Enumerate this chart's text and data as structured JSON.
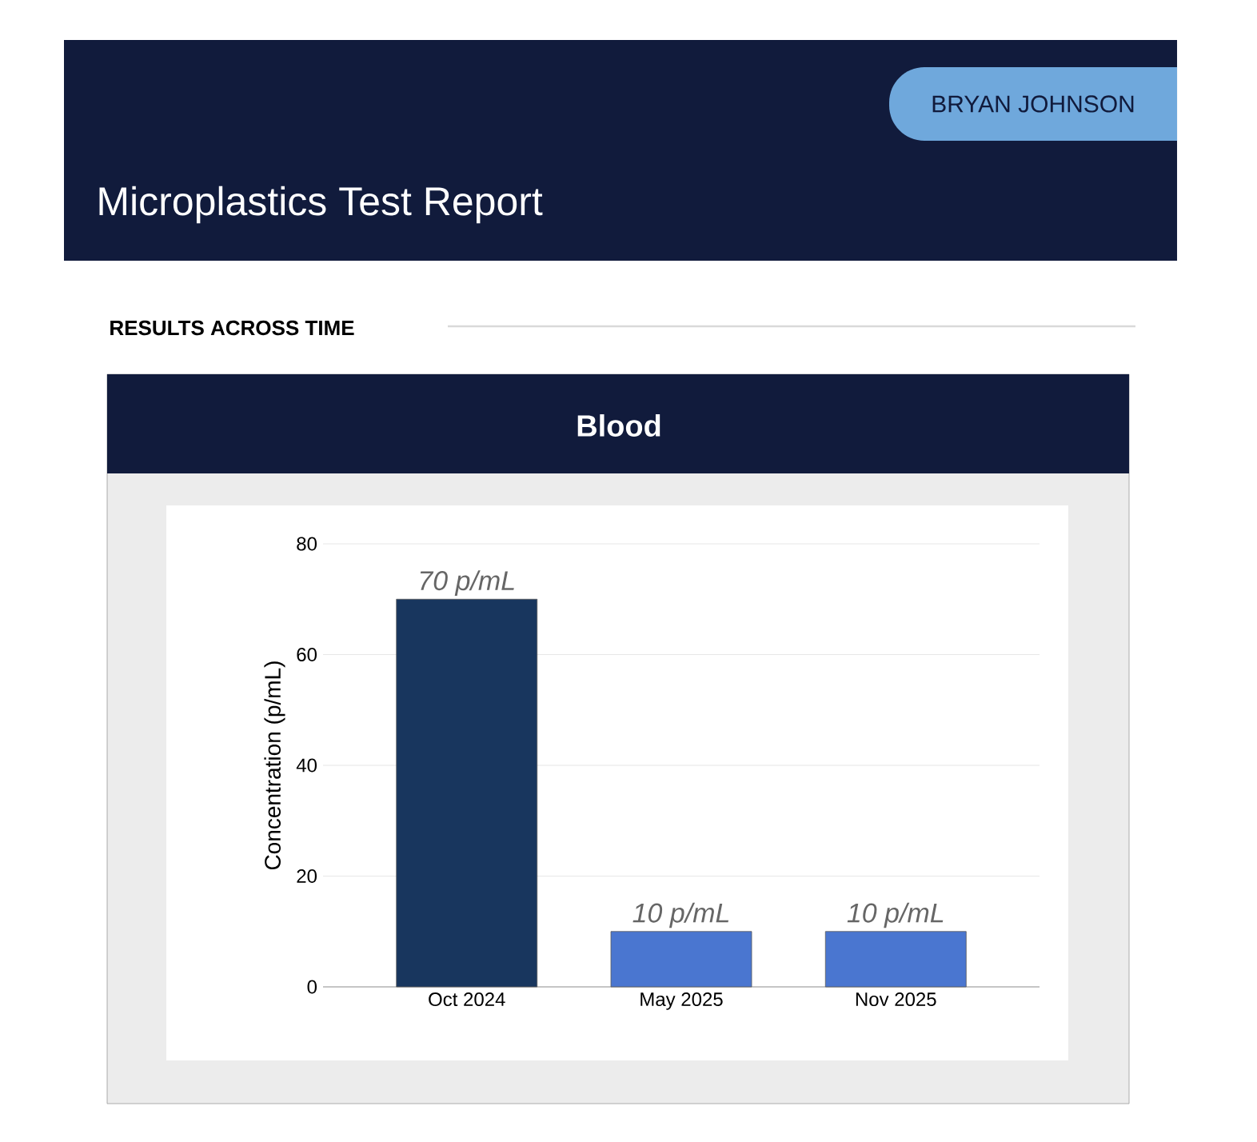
{
  "chart_data": {
    "type": "bar",
    "title": "Microplastics Test Report",
    "subtitle": "Blood",
    "annotations": [
      "BRYAN JOHNSON",
      "RESULTS ACROSS TIME"
    ],
    "ylabel": "Concentration (p/mL)",
    "categories": [
      "Oct 2024",
      "May 2025",
      "Nov 2025"
    ],
    "values": [
      70,
      10,
      10
    ],
    "colors": [
      "#18365e",
      "#4a76d0",
      "#4a76d0"
    ],
    "value_labels": [
      "70 p/mL",
      "10 p/mL",
      "10 p/mL"
    ],
    "ylim": [
      0,
      80
    ],
    "yticks": [
      0,
      20,
      40,
      60,
      80
    ],
    "grid": "y"
  }
}
